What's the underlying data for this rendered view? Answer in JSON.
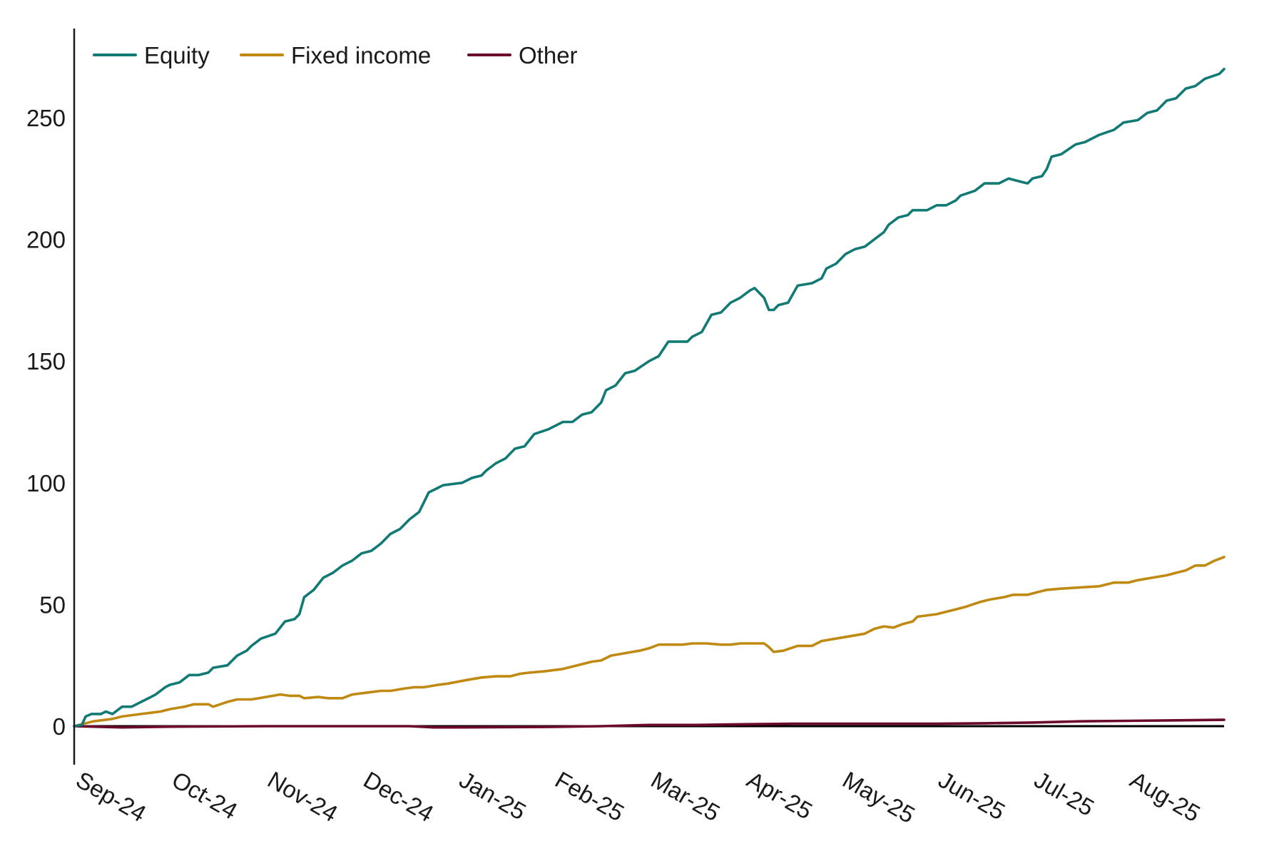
{
  "chart_data": {
    "type": "line",
    "title": "",
    "xlabel": "",
    "ylabel": "",
    "x_tick_labels": [
      "Sep-24",
      "Oct-24",
      "Nov-24",
      "Dec-24",
      "Jan-25",
      "Feb-25",
      "Mar-25",
      "Apr-25",
      "May-25",
      "Jun-25",
      "Jul-25",
      "Aug-25"
    ],
    "y_ticks": [
      0,
      50,
      100,
      150,
      200,
      250
    ],
    "ylim": [
      -15,
      287
    ],
    "x_range_months": [
      0,
      12
    ],
    "grid": false,
    "legend_position": "top-left",
    "series": [
      {
        "name": "Equity",
        "color": "#127a75",
        "points": [
          [
            0,
            0
          ],
          [
            0.08,
            0.5
          ],
          [
            0.12,
            4
          ],
          [
            0.18,
            5
          ],
          [
            0.28,
            5
          ],
          [
            0.33,
            6
          ],
          [
            0.4,
            5
          ],
          [
            0.5,
            8
          ],
          [
            0.6,
            8
          ],
          [
            0.7,
            10
          ],
          [
            0.8,
            12
          ],
          [
            0.85,
            13
          ],
          [
            0.95,
            16
          ],
          [
            1.0,
            17
          ],
          [
            1.1,
            18
          ],
          [
            1.2,
            21
          ],
          [
            1.3,
            21
          ],
          [
            1.4,
            22
          ],
          [
            1.45,
            24
          ],
          [
            1.6,
            25
          ],
          [
            1.7,
            29
          ],
          [
            1.8,
            31
          ],
          [
            1.85,
            33
          ],
          [
            1.95,
            36
          ],
          [
            2.1,
            38
          ],
          [
            2.2,
            43
          ],
          [
            2.3,
            44
          ],
          [
            2.35,
            46
          ],
          [
            2.4,
            53
          ],
          [
            2.5,
            56
          ],
          [
            2.6,
            61
          ],
          [
            2.7,
            63
          ],
          [
            2.8,
            66
          ],
          [
            2.9,
            68
          ],
          [
            3.0,
            71
          ],
          [
            3.1,
            72
          ],
          [
            3.2,
            75
          ],
          [
            3.3,
            79
          ],
          [
            3.4,
            81
          ],
          [
            3.5,
            85
          ],
          [
            3.6,
            88
          ],
          [
            3.7,
            96
          ],
          [
            3.8,
            98
          ],
          [
            3.85,
            99
          ],
          [
            4.05,
            100
          ],
          [
            4.15,
            102
          ],
          [
            4.25,
            103
          ],
          [
            4.3,
            105
          ],
          [
            4.4,
            108
          ],
          [
            4.5,
            110
          ],
          [
            4.6,
            114
          ],
          [
            4.7,
            115
          ],
          [
            4.8,
            120
          ],
          [
            4.95,
            122
          ],
          [
            5.1,
            125
          ],
          [
            5.2,
            125
          ],
          [
            5.3,
            128
          ],
          [
            5.4,
            129
          ],
          [
            5.5,
            133
          ],
          [
            5.55,
            138
          ],
          [
            5.65,
            140
          ],
          [
            5.75,
            145
          ],
          [
            5.85,
            146
          ],
          [
            6.0,
            150
          ],
          [
            6.1,
            152
          ],
          [
            6.2,
            158
          ],
          [
            6.35,
            158
          ],
          [
            6.4,
            158
          ],
          [
            6.45,
            160
          ],
          [
            6.55,
            162
          ],
          [
            6.65,
            169
          ],
          [
            6.75,
            170
          ],
          [
            6.85,
            174
          ],
          [
            6.95,
            176
          ],
          [
            7.05,
            179
          ],
          [
            7.1,
            180
          ],
          [
            7.2,
            176
          ],
          [
            7.25,
            171
          ],
          [
            7.3,
            171
          ],
          [
            7.35,
            173
          ],
          [
            7.45,
            174
          ],
          [
            7.55,
            181
          ],
          [
            7.7,
            182
          ],
          [
            7.8,
            184
          ],
          [
            7.85,
            188
          ],
          [
            7.95,
            190
          ],
          [
            8.05,
            194
          ],
          [
            8.15,
            196
          ],
          [
            8.25,
            197
          ],
          [
            8.35,
            200
          ],
          [
            8.45,
            203
          ],
          [
            8.5,
            206
          ],
          [
            8.6,
            209
          ],
          [
            8.7,
            210
          ],
          [
            8.75,
            212
          ],
          [
            8.9,
            212
          ],
          [
            9.0,
            214
          ],
          [
            9.1,
            214
          ],
          [
            9.2,
            216
          ],
          [
            9.25,
            218
          ],
          [
            9.4,
            220
          ],
          [
            9.5,
            223
          ],
          [
            9.65,
            223
          ],
          [
            9.75,
            225
          ],
          [
            9.85,
            224
          ],
          [
            9.95,
            223
          ],
          [
            10.0,
            225
          ],
          [
            10.1,
            226
          ],
          [
            10.15,
            229
          ],
          [
            10.2,
            234
          ],
          [
            10.3,
            235
          ],
          [
            10.45,
            239
          ],
          [
            10.55,
            240
          ],
          [
            10.7,
            243
          ],
          [
            10.85,
            245
          ],
          [
            10.95,
            248
          ],
          [
            11.1,
            249
          ],
          [
            11.2,
            252
          ],
          [
            11.3,
            253
          ],
          [
            11.4,
            257
          ],
          [
            11.5,
            258
          ],
          [
            11.6,
            262
          ],
          [
            11.7,
            263
          ],
          [
            11.8,
            266
          ],
          [
            11.95,
            268
          ],
          [
            12.0,
            270
          ]
        ]
      },
      {
        "name": "Fixed income",
        "color": "#c08a12",
        "points": [
          [
            0,
            0
          ],
          [
            0.2,
            2
          ],
          [
            0.4,
            3
          ],
          [
            0.5,
            4
          ],
          [
            0.7,
            5
          ],
          [
            0.8,
            5.5
          ],
          [
            0.9,
            6
          ],
          [
            1.0,
            7
          ],
          [
            1.15,
            8
          ],
          [
            1.25,
            9
          ],
          [
            1.4,
            9
          ],
          [
            1.45,
            8
          ],
          [
            1.6,
            10
          ],
          [
            1.7,
            11
          ],
          [
            1.85,
            11
          ],
          [
            2.0,
            12
          ],
          [
            2.15,
            13
          ],
          [
            2.25,
            12.5
          ],
          [
            2.35,
            12.5
          ],
          [
            2.4,
            11.5
          ],
          [
            2.55,
            12
          ],
          [
            2.65,
            11.5
          ],
          [
            2.8,
            11.5
          ],
          [
            2.9,
            13
          ],
          [
            3.0,
            13.5
          ],
          [
            3.1,
            14
          ],
          [
            3.2,
            14.5
          ],
          [
            3.3,
            14.5
          ],
          [
            3.45,
            15.5
          ],
          [
            3.55,
            16
          ],
          [
            3.65,
            16
          ],
          [
            3.8,
            17
          ],
          [
            3.9,
            17.5
          ],
          [
            4.1,
            19
          ],
          [
            4.25,
            20
          ],
          [
            4.4,
            20.5
          ],
          [
            4.55,
            20.5
          ],
          [
            4.65,
            21.5
          ],
          [
            4.75,
            22
          ],
          [
            4.9,
            22.5
          ],
          [
            5.1,
            23.5
          ],
          [
            5.25,
            25
          ],
          [
            5.4,
            26.5
          ],
          [
            5.5,
            27
          ],
          [
            5.6,
            29
          ],
          [
            5.75,
            30
          ],
          [
            5.9,
            31
          ],
          [
            6.0,
            32
          ],
          [
            6.1,
            33.5
          ],
          [
            6.2,
            33.5
          ],
          [
            6.35,
            33.5
          ],
          [
            6.45,
            34
          ],
          [
            6.6,
            34
          ],
          [
            6.75,
            33.5
          ],
          [
            6.85,
            33.5
          ],
          [
            6.95,
            34
          ],
          [
            7.1,
            34
          ],
          [
            7.2,
            34
          ],
          [
            7.25,
            32.5
          ],
          [
            7.3,
            30.5
          ],
          [
            7.4,
            31
          ],
          [
            7.55,
            33
          ],
          [
            7.7,
            33
          ],
          [
            7.8,
            35
          ],
          [
            7.95,
            36
          ],
          [
            8.1,
            37
          ],
          [
            8.25,
            38
          ],
          [
            8.35,
            40
          ],
          [
            8.45,
            41
          ],
          [
            8.55,
            40.5
          ],
          [
            8.65,
            42
          ],
          [
            8.75,
            43
          ],
          [
            8.8,
            45
          ],
          [
            9.0,
            46
          ],
          [
            9.1,
            47
          ],
          [
            9.2,
            48
          ],
          [
            9.3,
            49
          ],
          [
            9.45,
            51
          ],
          [
            9.55,
            52
          ],
          [
            9.7,
            53
          ],
          [
            9.8,
            54
          ],
          [
            9.95,
            54
          ],
          [
            10.05,
            55
          ],
          [
            10.15,
            56
          ],
          [
            10.3,
            56.5
          ],
          [
            10.5,
            57
          ],
          [
            10.7,
            57.5
          ],
          [
            10.85,
            59
          ],
          [
            11.0,
            59
          ],
          [
            11.1,
            60
          ],
          [
            11.25,
            61
          ],
          [
            11.4,
            62
          ],
          [
            11.5,
            63
          ],
          [
            11.6,
            64
          ],
          [
            11.7,
            66
          ],
          [
            11.8,
            66
          ],
          [
            11.9,
            68
          ],
          [
            12.0,
            69.5
          ]
        ]
      },
      {
        "name": "Other",
        "color": "#6b0a2a",
        "points": [
          [
            0,
            0
          ],
          [
            0.5,
            -0.5
          ],
          [
            1.0,
            -0.2
          ],
          [
            2.0,
            0
          ],
          [
            3.0,
            0
          ],
          [
            3.5,
            0
          ],
          [
            3.75,
            -0.5
          ],
          [
            4.0,
            -0.5
          ],
          [
            5.0,
            -0.3
          ],
          [
            5.5,
            0
          ],
          [
            6.0,
            0.5
          ],
          [
            6.5,
            0.5
          ],
          [
            7.0,
            0.8
          ],
          [
            7.5,
            1
          ],
          [
            8.0,
            1
          ],
          [
            9.0,
            1
          ],
          [
            9.5,
            1.2
          ],
          [
            10.0,
            1.5
          ],
          [
            10.5,
            2
          ],
          [
            11.0,
            2.2
          ],
          [
            11.5,
            2.4
          ],
          [
            12.0,
            2.6
          ]
        ]
      }
    ]
  }
}
